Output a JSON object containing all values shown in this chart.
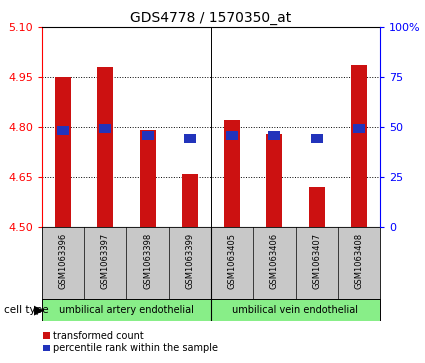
{
  "title": "GDS4778 / 1570350_at",
  "samples": [
    "GSM1063396",
    "GSM1063397",
    "GSM1063398",
    "GSM1063399",
    "GSM1063405",
    "GSM1063406",
    "GSM1063407",
    "GSM1063408"
  ],
  "red_values": [
    4.95,
    4.98,
    4.79,
    4.66,
    4.82,
    4.78,
    4.62,
    4.985
  ],
  "blue_values": [
    4.79,
    4.795,
    4.775,
    4.765,
    4.775,
    4.775,
    4.765,
    4.795
  ],
  "y_min": 4.5,
  "y_max": 5.1,
  "y_ticks": [
    4.5,
    4.65,
    4.8,
    4.95,
    5.1
  ],
  "right_y_labels": [
    "0",
    "25",
    "50",
    "75",
    "100%"
  ],
  "cell_type_artery": "umbilical artery endothelial",
  "cell_type_vein": "umbilical vein endothelial",
  "bar_color": "#cc1111",
  "blue_color": "#2233bb",
  "bg_xlabels": "#c8c8c8",
  "bg_celltypes": "#88ee88",
  "legend_red": "transformed count",
  "legend_blue": "percentile rank within the sample"
}
